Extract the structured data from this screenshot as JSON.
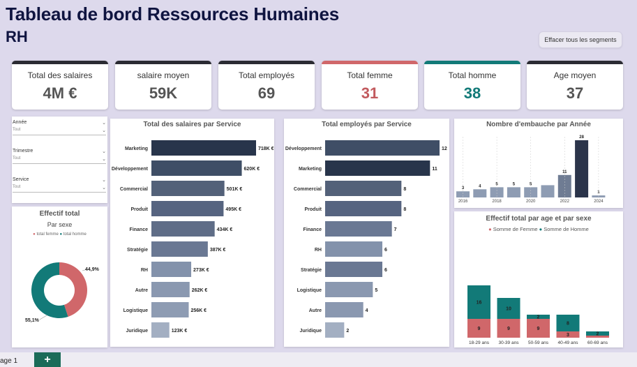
{
  "header": {
    "title": "Tableau de bord Ressources Humaines",
    "subtitle": "RH",
    "clear_button": "Effacer tous les segments"
  },
  "kpis": [
    {
      "label": "Total des salaires",
      "value": "4M €",
      "accent": "#2b2b33",
      "value_color": "#555555"
    },
    {
      "label": "salaire moyen",
      "value": "59K",
      "accent": "#2b2b33",
      "value_color": "#555555"
    },
    {
      "label": "Total employés",
      "value": "69",
      "accent": "#2b2b33",
      "value_color": "#555555"
    },
    {
      "label": "Total femme",
      "value": "31",
      "accent": "#d0676a",
      "value_color": "#c25a5e"
    },
    {
      "label": "Total homme",
      "value": "38",
      "accent": "#127a78",
      "value_color": "#127a78"
    },
    {
      "label": "Age moyen",
      "value": "37",
      "accent": "#2b2b33",
      "value_color": "#555555"
    }
  ],
  "slicers": [
    {
      "label": "Année",
      "value": "Tout"
    },
    {
      "label": "Trimestre",
      "value": "Tout"
    },
    {
      "label": "Service",
      "value": "Tout"
    }
  ],
  "donut": {
    "title": "Effectif total",
    "subtitle": "Par sexe",
    "legend": [
      {
        "label": "total femme",
        "color": "#d0676a"
      },
      {
        "label": "total homme",
        "color": "#127a78"
      }
    ],
    "femme_pct": "44,9%",
    "homme_pct": "55,1%"
  },
  "tabs": {
    "page": "age 1",
    "add": "+"
  },
  "chart_data": [
    {
      "type": "bar",
      "orientation": "horizontal",
      "title": "Total des salaires par Service",
      "categories": [
        "Marketing",
        "Développement",
        "Commercial",
        "Produit",
        "Finance",
        "Stratégie",
        "RH",
        "Autre",
        "Logistique",
        "Juridique"
      ],
      "values": [
        718,
        620,
        501,
        495,
        434,
        387,
        273,
        262,
        256,
        123
      ],
      "labels": [
        "718K €",
        "620K €",
        "501K €",
        "495K €",
        "434K €",
        "387K €",
        "273K €",
        "262K €",
        "256K €",
        "123K €"
      ]
    },
    {
      "type": "bar",
      "orientation": "horizontal",
      "title": "Total employés par Service",
      "categories": [
        "Développement",
        "Marketing",
        "Commercial",
        "Produit",
        "Finance",
        "RH",
        "Stratégie",
        "Logistique",
        "Autre",
        "Juridique"
      ],
      "values": [
        12,
        11,
        8,
        8,
        7,
        6,
        6,
        5,
        4,
        2
      ],
      "labels": [
        "12",
        "11",
        "8",
        "8",
        "7",
        "6",
        "6",
        "5",
        "4",
        "2"
      ]
    },
    {
      "type": "bar",
      "title": "Nombre d'embauche par Année",
      "x": [
        2016,
        2017,
        2018,
        2019,
        2020,
        2021,
        2022,
        2023,
        2024
      ],
      "values": [
        3,
        4,
        5,
        5,
        5,
        6,
        11,
        28,
        1
      ],
      "labels": [
        "3",
        "4",
        "5",
        "5",
        "5",
        "",
        "11",
        "28",
        "1"
      ],
      "tick_labels": [
        "2016",
        "2018",
        "2020",
        "2022",
        "2024"
      ]
    },
    {
      "type": "bar",
      "stacked": true,
      "title": "Effectif total par age et par sexe",
      "categories": [
        "18-29 ans",
        "30-39 ans",
        "50-59 ans",
        "40-49 ans",
        "60-69 ans"
      ],
      "series": [
        {
          "name": "Somme de Femme",
          "color": "#d0676a",
          "values": [
            9,
            9,
            9,
            3,
            1
          ]
        },
        {
          "name": "Somme de Homme",
          "color": "#127a78",
          "values": [
            16,
            10,
            2,
            8,
            2
          ]
        }
      ],
      "labels_femme": [
        "9",
        "9",
        "9",
        "3",
        ""
      ],
      "labels_homme": [
        "16",
        "10",
        "2",
        "8",
        "2"
      ]
    },
    {
      "type": "pie",
      "title": "Effectif total",
      "categories": [
        "total femme",
        "total homme"
      ],
      "values": [
        44.9,
        55.1
      ]
    }
  ]
}
